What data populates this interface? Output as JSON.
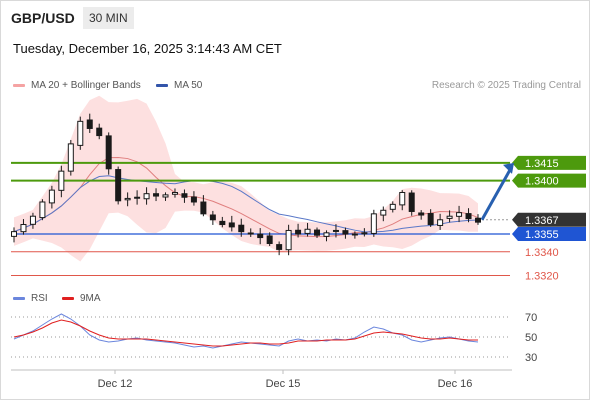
{
  "header": {
    "symbol": "GBP/USD",
    "timeframe": "30 MIN",
    "datetime": "Tuesday, December 16, 2025 3:14:43 AM CET"
  },
  "legend": {
    "ma20_bollinger": "MA 20 + Bollinger Bands",
    "ma50": "MA 50",
    "credit": "Research © 2025 Trading Central",
    "rsi": "RSI",
    "rsi_ma": "9MA"
  },
  "colors": {
    "bollinger_fill": "#fde0e0",
    "ma20": "#e07f7f",
    "ma50": "#5a78c8",
    "green": "#4d9a0d",
    "blue": "#1f55d3",
    "red": "#e0574a",
    "candle": "#1a1a1a",
    "rsi": "#6b86dd",
    "rsi_ma": "#e02020",
    "arrow": "#2860b0",
    "current": "#333333"
  },
  "chart_data": [
    {
      "type": "candlestick",
      "title": "GBP/USD 30 MIN",
      "x_tick_labels": [
        "Dec 12",
        "Dec 15",
        "Dec 16"
      ],
      "ylim": [
        1.3312,
        1.3468
      ],
      "series_names": [
        "MA 20 + Bollinger Bands",
        "MA 50"
      ],
      "close_approx": [
        1.3357,
        1.3363,
        1.337,
        1.3382,
        1.3392,
        1.3408,
        1.3431,
        1.345,
        1.3444,
        1.3438,
        1.341,
        1.3383,
        1.3385,
        1.3386,
        1.3389,
        1.3387,
        1.3388,
        1.339,
        1.3386,
        1.3382,
        1.3372,
        1.3367,
        1.3363,
        1.3361,
        1.3357,
        1.3355,
        1.3352,
        1.3347,
        1.3342,
        1.3358,
        1.3355,
        1.3359,
        1.3354,
        1.3356,
        1.3358,
        1.3355,
        1.3355,
        1.3356,
        1.3372,
        1.3375,
        1.338,
        1.339,
        1.3374,
        1.3371,
        1.3363,
        1.3367,
        1.337,
        1.3373,
        1.3368,
        1.3365
      ],
      "levels": [
        {
          "value": "1.3415",
          "type": "resistance"
        },
        {
          "value": "1.3400",
          "type": "resistance"
        },
        {
          "value": "1.3367",
          "type": "current"
        },
        {
          "value": "1.3355",
          "type": "pivot"
        },
        {
          "value": "1.3340",
          "type": "support"
        },
        {
          "value": "1.3320",
          "type": "support"
        }
      ],
      "forecast": {
        "from": 1.3367,
        "to": 1.3415
      }
    },
    {
      "type": "line",
      "title": "RSI",
      "series_names": [
        "RSI",
        "9MA"
      ],
      "y_tick_labels": [
        "70",
        "50",
        "30"
      ],
      "ylim": [
        20,
        80
      ],
      "rsi_approx": [
        48,
        52,
        56,
        62,
        68,
        73,
        68,
        61,
        52,
        47,
        45,
        46,
        48,
        49,
        47,
        46,
        45,
        44,
        42,
        40,
        41,
        39,
        41,
        43,
        45,
        44,
        43,
        42,
        41,
        46,
        48,
        46,
        47,
        46,
        48,
        47,
        49,
        55,
        60,
        58,
        54,
        52,
        47,
        45,
        47,
        49,
        50,
        48,
        46,
        45
      ],
      "rsi_ma_approx": [
        50,
        52,
        55,
        59,
        64,
        67,
        65,
        61,
        56,
        52,
        49,
        48,
        48,
        48,
        48,
        47,
        46,
        45,
        44,
        43,
        42,
        41,
        41,
        42,
        43,
        44,
        44,
        43,
        43,
        44,
        46,
        46,
        46,
        47,
        47,
        47,
        48,
        51,
        54,
        55,
        54,
        53,
        51,
        49,
        48,
        48,
        49,
        48,
        47,
        47
      ]
    }
  ]
}
